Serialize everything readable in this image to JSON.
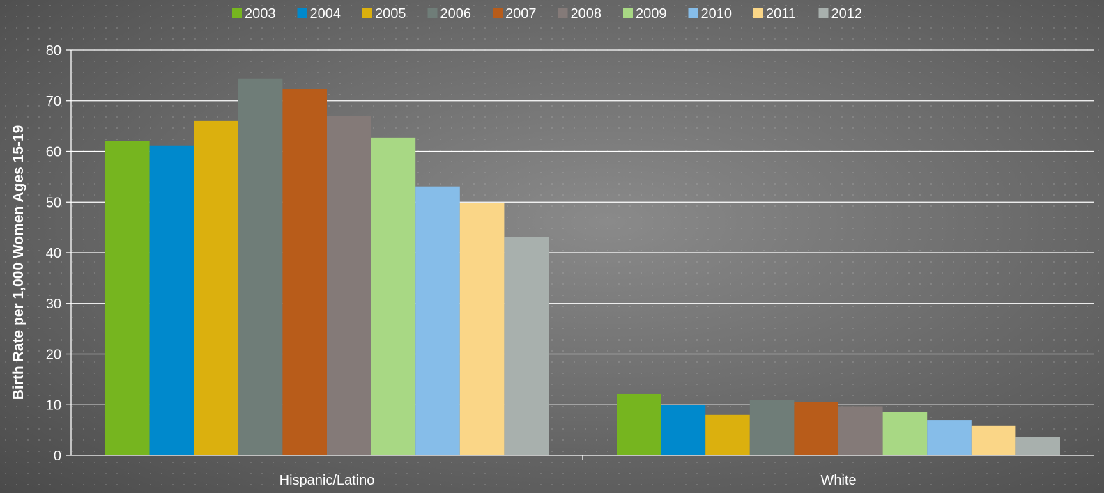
{
  "chart_data": {
    "type": "bar",
    "title": "",
    "xlabel": "",
    "ylabel": "Birth Rate per 1,000 Women Ages 15-19",
    "ylim": [
      0,
      80
    ],
    "yticks": [
      0,
      10,
      20,
      30,
      40,
      50,
      60,
      70,
      80
    ],
    "grid": true,
    "legend_position": "top",
    "categories": [
      "Hispanic/Latino",
      "White"
    ],
    "series": [
      {
        "name": "2003",
        "color": "#76b51f",
        "values": [
          62.1,
          12.1
        ]
      },
      {
        "name": "2004",
        "color": "#0089cc",
        "values": [
          61.2,
          10.0
        ]
      },
      {
        "name": "2005",
        "color": "#dbb00e",
        "values": [
          66.0,
          8.0
        ]
      },
      {
        "name": "2006",
        "color": "#6f7d78",
        "values": [
          74.4,
          10.9
        ]
      },
      {
        "name": "2007",
        "color": "#b85c1a",
        "values": [
          72.3,
          10.5
        ]
      },
      {
        "name": "2008",
        "color": "#847a78",
        "values": [
          67.0,
          9.7
        ]
      },
      {
        "name": "2009",
        "color": "#a8d884",
        "values": [
          62.7,
          8.6
        ]
      },
      {
        "name": "2010",
        "color": "#86bde9",
        "values": [
          53.1,
          7.0
        ]
      },
      {
        "name": "2011",
        "color": "#fad687",
        "values": [
          49.8,
          5.8
        ]
      },
      {
        "name": "2012",
        "color": "#a8b0ad",
        "values": [
          43.1,
          3.6
        ]
      }
    ]
  }
}
